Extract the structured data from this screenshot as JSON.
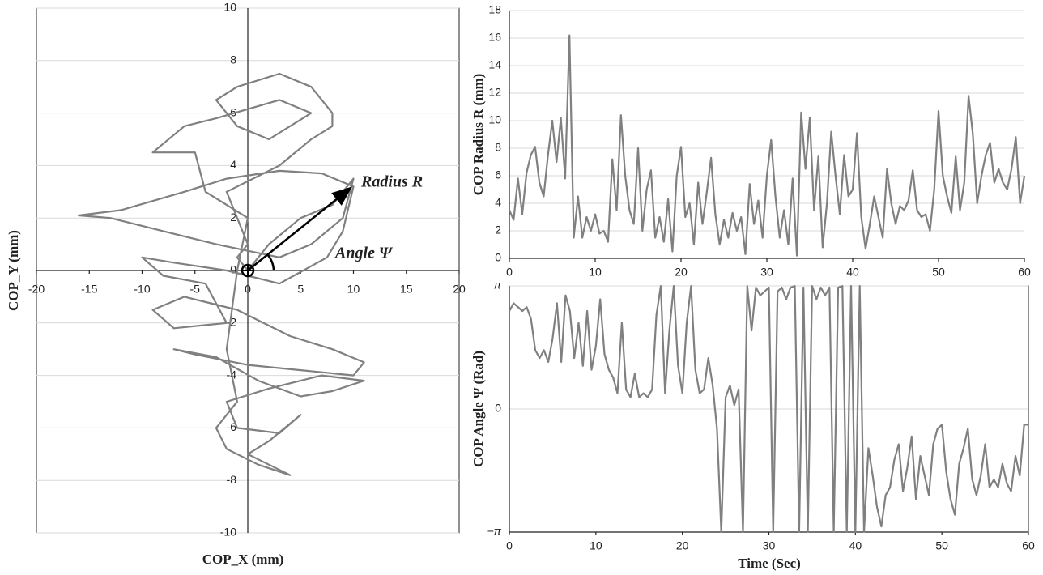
{
  "chart_data": [
    {
      "type": "line",
      "xlabel": "COP_X (mm)",
      "ylabel": "COP_Y (mm)",
      "color": "#808080",
      "grid": true,
      "annotations": [
        "Radius R",
        "Angle Ψ"
      ],
      "xlim": [
        -20,
        20
      ],
      "xticks": [
        -20,
        -15,
        -10,
        -5,
        0,
        5,
        10,
        15,
        20
      ],
      "ylim": [
        -10,
        10
      ],
      "yticks": [
        -10,
        -8,
        -6,
        -4,
        -2,
        0,
        2,
        4,
        6,
        8,
        10
      ],
      "x": [
        0,
        2,
        5,
        8,
        10,
        9,
        6,
        3,
        -3,
        -8,
        -13,
        -16,
        -12,
        -6,
        -2,
        3,
        7,
        10,
        9,
        7.5,
        3,
        -2,
        -7,
        -10,
        -8,
        -4,
        -2,
        -7,
        -9,
        -6,
        -1,
        4,
        8,
        11,
        10,
        5,
        0,
        -5,
        -7,
        -3,
        1,
        5,
        8,
        11,
        7,
        2,
        -2,
        -1,
        3,
        5,
        2,
        0,
        3,
        4,
        1,
        -2,
        -3,
        -1,
        -2,
        -1,
        0,
        -4,
        -5,
        -9,
        -6,
        -3,
        3,
        6,
        2,
        -1,
        -3,
        -1,
        3,
        6,
        8,
        8,
        6,
        3,
        -2,
        0,
        -1,
        0
      ],
      "values": [
        0,
        1,
        2,
        2.5,
        3.5,
        2,
        1,
        0.5,
        1,
        1.5,
        2,
        2.1,
        2.3,
        3,
        3.5,
        3.8,
        3.7,
        3.2,
        1.5,
        0.5,
        -0.5,
        0,
        0.3,
        0.5,
        -0.2,
        -0.5,
        -2,
        -2.2,
        -1.5,
        -1,
        -1.5,
        -2.5,
        -3,
        -3.5,
        -4,
        -3.8,
        -3.6,
        -3.2,
        -3,
        -3.3,
        -4.2,
        -4.8,
        -4.6,
        -4.2,
        -4,
        -4.5,
        -5,
        -6,
        -6.2,
        -5.5,
        -6.5,
        -7,
        -7.6,
        -7.8,
        -7.4,
        -6.8,
        -6,
        -5,
        -3,
        0,
        2,
        3,
        4.5,
        4.5,
        5.5,
        5.8,
        6.5,
        6,
        5,
        5.5,
        6.5,
        7,
        7.5,
        7,
        6,
        5.5,
        5,
        4,
        3,
        1,
        0.5,
        0
      ]
    },
    {
      "type": "line",
      "ylabel": "COP Radius R (mm)",
      "color": "#808080",
      "grid": true,
      "xlim": [
        0,
        60
      ],
      "xticks": [
        0,
        10,
        20,
        30,
        40,
        50,
        60
      ],
      "ylim": [
        0,
        18
      ],
      "yticks": [
        0,
        2,
        4,
        6,
        8,
        10,
        12,
        14,
        16,
        18
      ],
      "x": [
        0,
        0.5,
        1,
        1.5,
        2,
        2.5,
        3,
        3.5,
        4,
        4.5,
        5,
        5.5,
        6,
        6.5,
        7,
        7.5,
        8,
        8.5,
        9,
        9.5,
        10,
        10.5,
        11,
        11.5,
        12,
        12.5,
        13,
        13.5,
        14,
        14.5,
        15,
        15.5,
        16,
        16.5,
        17,
        17.5,
        18,
        18.5,
        19,
        19.5,
        20,
        20.5,
        21,
        21.5,
        22,
        22.5,
        23,
        23.5,
        24,
        24.5,
        25,
        25.5,
        26,
        26.5,
        27,
        27.5,
        28,
        28.5,
        29,
        29.5,
        30,
        30.5,
        31,
        31.5,
        32,
        32.5,
        33,
        33.5,
        34,
        34.5,
        35,
        35.5,
        36,
        36.5,
        37,
        37.5,
        38,
        38.5,
        39,
        39.5,
        40,
        40.5,
        41,
        41.5,
        42,
        42.5,
        43,
        43.5,
        44,
        44.5,
        45,
        45.5,
        46,
        46.5,
        47,
        47.5,
        48,
        48.5,
        49,
        49.5,
        50,
        50.5,
        51,
        51.5,
        52,
        52.5,
        53,
        53.5,
        54,
        54.5,
        55,
        55.5,
        56,
        56.5,
        57,
        57.5,
        58,
        58.5,
        59,
        59.5,
        60
      ],
      "values": [
        3.5,
        2.8,
        5.8,
        3.2,
        6.2,
        7.5,
        8.1,
        5.5,
        4.5,
        7.5,
        10,
        7,
        10.2,
        5.8,
        16.2,
        1.5,
        4.5,
        1.5,
        3,
        2,
        3.2,
        1.8,
        2,
        1.2,
        7.2,
        3.5,
        10.4,
        6,
        3.5,
        2.5,
        8,
        2,
        5,
        6.4,
        1.5,
        3,
        1.2,
        4.3,
        0.5,
        6,
        8.1,
        3,
        4,
        1,
        5.5,
        2.5,
        4.8,
        7.3,
        3.2,
        1,
        2.8,
        1.5,
        3.3,
        2,
        3,
        0.3,
        5.4,
        2.5,
        4.2,
        1.5,
        6,
        8.6,
        4.5,
        1.5,
        3.5,
        1,
        5.8,
        0.2,
        10.6,
        6.5,
        10.2,
        3.5,
        7.4,
        0.8,
        4,
        9.2,
        6,
        3.2,
        7.5,
        4.5,
        5,
        9.1,
        3,
        0.7,
        2.5,
        4.5,
        3,
        1.5,
        6.5,
        4,
        2.5,
        3.8,
        3.5,
        4.2,
        6.4,
        3.5,
        3,
        3.2,
        2,
        5,
        10.7,
        6,
        4.5,
        3.3,
        7.4,
        3.5,
        5.5,
        11.8,
        9,
        4,
        6,
        7.5,
        8.4,
        5.5,
        6.5,
        5.5,
        5,
        6.5,
        8.8,
        4,
        6
      ]
    },
    {
      "type": "line",
      "xlabel": "Time (Sec)",
      "ylabel": "COP Angle Ψ (Rad)",
      "color": "#808080",
      "grid": true,
      "xlim": [
        0,
        60
      ],
      "xticks": [
        0,
        10,
        20,
        30,
        40,
        50,
        60
      ],
      "ylim": [
        -3.14159,
        3.14159
      ],
      "yticks": [
        {
          "value": -3.14159,
          "label": "−π"
        },
        0,
        {
          "value": 3.14159,
          "label": "π"
        }
      ],
      "x": [
        0,
        0.5,
        1,
        1.5,
        2,
        2.5,
        3,
        3.5,
        4,
        4.5,
        5,
        5.5,
        6,
        6.5,
        7,
        7.5,
        8,
        8.5,
        9,
        9.5,
        10,
        10.5,
        11,
        11.5,
        12,
        12.5,
        13,
        13.5,
        14,
        14.5,
        15,
        15.5,
        16,
        16.5,
        17,
        17.5,
        18,
        18.5,
        19,
        19.5,
        20,
        20.5,
        21,
        21.5,
        22,
        22.5,
        23,
        23.5,
        24,
        24.5,
        25,
        25.5,
        26,
        26.5,
        27,
        27.5,
        28,
        28.5,
        29,
        29.5,
        30,
        30.5,
        31,
        31.5,
        32,
        32.5,
        33,
        33.5,
        34,
        34.5,
        35,
        35.5,
        36,
        36.5,
        37,
        37.5,
        38,
        38.5,
        39,
        39.5,
        40,
        40.5,
        41,
        41.5,
        42,
        42.5,
        43,
        43.5,
        44,
        44.5,
        45,
        45.5,
        46,
        46.5,
        47,
        47.5,
        48,
        48.5,
        49,
        49.5,
        50,
        50.5,
        51,
        51.5,
        52,
        52.5,
        53,
        53.5,
        54,
        54.5,
        55,
        55.5,
        56,
        56.5,
        57,
        57.5,
        58,
        58.5,
        59,
        59.5,
        60
      ],
      "values": [
        2.5,
        2.7,
        2.6,
        2.5,
        2.6,
        2.3,
        1.5,
        1.3,
        1.5,
        1.2,
        1.8,
        2.7,
        1.2,
        2.9,
        2.5,
        1.3,
        2.2,
        1.1,
        2.5,
        1.0,
        1.6,
        2.8,
        1.4,
        1.0,
        0.8,
        0.4,
        2.2,
        0.5,
        0.3,
        0.9,
        0.3,
        0.4,
        0.3,
        0.5,
        2.4,
        3.14,
        0.4,
        2.0,
        3.14,
        1.1,
        0.4,
        2.2,
        3.14,
        1.0,
        0.4,
        0.5,
        1.3,
        0.6,
        -0.5,
        -3.14,
        0.3,
        0.6,
        0.1,
        0.5,
        -3.14,
        3.14,
        2.0,
        3.1,
        2.9,
        3.0,
        3.1,
        -3.14,
        3.0,
        3.1,
        2.8,
        3.1,
        3.14,
        -3.14,
        3.1,
        -3.14,
        3.14,
        2.8,
        3.1,
        2.9,
        3.1,
        -3.14,
        3.1,
        3.14,
        -3.14,
        3.14,
        -3.14,
        3.14,
        -3.14,
        -1.0,
        -1.7,
        -2.5,
        -3.0,
        -2.2,
        -2.0,
        -1.3,
        -0.9,
        -2.1,
        -1.5,
        -0.7,
        -2.3,
        -1.2,
        -1.7,
        -2.2,
        -0.9,
        -0.5,
        -0.4,
        -1.6,
        -2.3,
        -2.7,
        -1.4,
        -1.0,
        -0.5,
        -1.8,
        -2.2,
        -1.7,
        -0.9,
        -2.0,
        -1.8,
        -2.0,
        -1.4,
        -1.9,
        -2.1,
        -1.2,
        -1.7,
        -0.4,
        -0.4
      ]
    }
  ]
}
